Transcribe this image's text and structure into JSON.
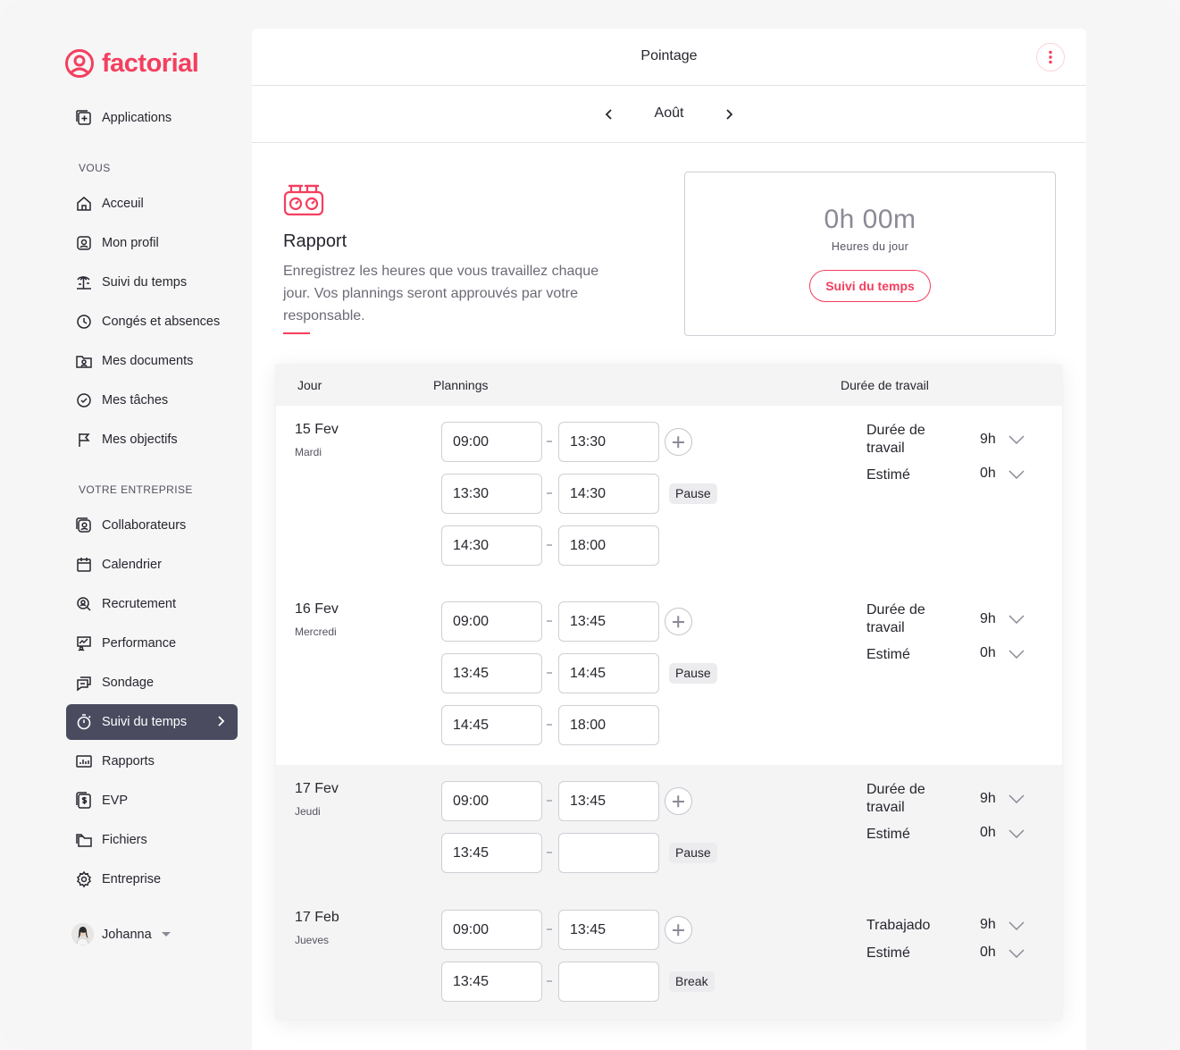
{
  "brand": {
    "name": "factorial",
    "accent": "#f43f5e"
  },
  "sidebar": {
    "top_item": {
      "label": "Applications",
      "icon": "plus-square-icon"
    },
    "section_you": "VOUS",
    "you_items": [
      {
        "label": "Acceuil",
        "icon": "home-icon"
      },
      {
        "label": "Mon profil",
        "icon": "user-card-icon"
      },
      {
        "label": "Suivi du temps",
        "icon": "beach-icon"
      },
      {
        "label": "Congés et absences",
        "icon": "clock-icon"
      },
      {
        "label": "Mes documents",
        "icon": "folder-user-icon"
      },
      {
        "label": "Mes tâches",
        "icon": "check-circle-icon"
      },
      {
        "label": "Mes objectifs",
        "icon": "flag-icon"
      }
    ],
    "section_company": "VOTRE ENTREPRISE",
    "company_items": [
      {
        "label": "Collaborateurs",
        "icon": "users-icon"
      },
      {
        "label": "Calendrier",
        "icon": "calendar-icon"
      },
      {
        "label": "Recrutement",
        "icon": "search-user-icon"
      },
      {
        "label": "Performance",
        "icon": "performance-icon"
      },
      {
        "label": "Sondage",
        "icon": "chat-icon"
      },
      {
        "label": "Suivi du temps",
        "icon": "stopwatch-icon",
        "active": true
      },
      {
        "label": "Rapports",
        "icon": "chart-icon"
      },
      {
        "label": "EVP",
        "icon": "dollar-doc-icon"
      },
      {
        "label": "Fichiers",
        "icon": "folders-icon"
      },
      {
        "label": "Entreprise",
        "icon": "gear-icon"
      }
    ],
    "user": {
      "name": "Johanna"
    }
  },
  "header": {
    "title": "Pointage"
  },
  "month": {
    "label": "Août"
  },
  "report": {
    "title": "Rapport",
    "description": "Enregistrez les heures que vous travaillez chaque jour. Vos plannings seront approuvés par votre responsable."
  },
  "summary": {
    "value": "0h 00m",
    "label": "Heures du jour",
    "button": "Suivi du temps"
  },
  "table": {
    "headers": {
      "day": "Jour",
      "plannings": "Plannings",
      "duration": "Durée de travail"
    },
    "rows": [
      {
        "day": "15 Fev",
        "weekday": "Mardi",
        "slots": [
          [
            "09:00",
            "13:30"
          ],
          [
            "13:30",
            "14:30"
          ],
          [
            "14:30",
            "18:00"
          ]
        ],
        "break_label": "Pause",
        "duration_label": "Durée de travail",
        "duration_value": "9h",
        "estimate_label": "Estimé",
        "estimate_value": "0h"
      },
      {
        "day": "16 Fev",
        "weekday": "Mercredi",
        "slots": [
          [
            "09:00",
            "13:45"
          ],
          [
            "13:45",
            "14:45"
          ],
          [
            "14:45",
            "18:00"
          ]
        ],
        "break_label": "Pause",
        "duration_label": "Durée de travail",
        "duration_value": "9h",
        "estimate_label": "Estimé",
        "estimate_value": "0h"
      },
      {
        "day": "17 Fev",
        "weekday": "Jeudi",
        "slots": [
          [
            "09:00",
            "13:45"
          ],
          [
            "13:45",
            ""
          ]
        ],
        "break_label": "Pause",
        "duration_label": "Durée de travail",
        "duration_value": "9h",
        "estimate_label": "Estimé",
        "estimate_value": "0h"
      },
      {
        "day": "17 Feb",
        "weekday": "Jueves",
        "slots": [
          [
            "09:00",
            "13:45"
          ],
          [
            "13:45",
            ""
          ]
        ],
        "break_label": "Break",
        "duration_label": "Trabajado",
        "duration_value": "9h",
        "estimate_label": "Estimé",
        "estimate_value": "0h"
      }
    ]
  }
}
